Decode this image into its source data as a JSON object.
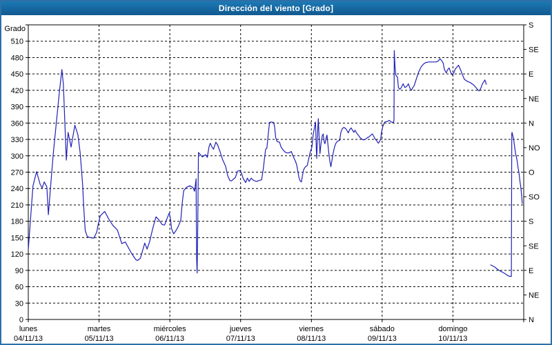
{
  "window": {
    "title": "Dirección del viento [Grado]"
  },
  "colors": {
    "titlebar": "#15659e",
    "frame_border": "#2e6fa8",
    "line": "#1f1fb5",
    "grid": "#000000",
    "plot_background": "#ffffff",
    "text": "#000000"
  },
  "chart_data": {
    "type": "line",
    "title": "Dirección del viento [Grado]",
    "grid": {
      "horizontal_step_deg": 30,
      "vertical_per_day": true,
      "style": "dashed"
    },
    "y_axis_left": {
      "label": "Grado",
      "min": 0,
      "max": 540,
      "tick_step": 30,
      "highest_labeled_tick": 510
    },
    "y_axis_right": {
      "tick_step_deg": 45,
      "labels_bottom_to_top": [
        "N",
        "NE",
        "E",
        "SE",
        "S",
        "SO",
        "O",
        "NO",
        "N",
        "NE",
        "E",
        "SE",
        "S"
      ]
    },
    "x_axis": {
      "hours_total": 168,
      "days": [
        {
          "name": "lunes",
          "date": "04/11/13"
        },
        {
          "name": "martes",
          "date": "05/11/13"
        },
        {
          "name": "miércoles",
          "date": "06/11/13"
        },
        {
          "name": "jueves",
          "date": "07/11/13"
        },
        {
          "name": "viernes",
          "date": "08/11/13"
        },
        {
          "name": "sábado",
          "date": "09/11/13"
        },
        {
          "name": "domingo",
          "date": "10/11/13"
        }
      ]
    },
    "series": [
      {
        "name": "Dirección del viento",
        "unit": "Grado",
        "color": "#1f1fb5",
        "segments": [
          [
            [
              0,
              128
            ],
            [
              0.7,
              180
            ],
            [
              1.6,
              245
            ],
            [
              2.8,
              271
            ],
            [
              4,
              248
            ],
            [
              4.7,
              241
            ],
            [
              5.4,
              252
            ],
            [
              6.3,
              243
            ],
            [
              6.8,
              192
            ],
            [
              7.5,
              240
            ],
            [
              8.5,
              305
            ],
            [
              9.5,
              360
            ],
            [
              10.5,
              415
            ],
            [
              11.4,
              458
            ],
            [
              11.9,
              430
            ],
            [
              12.4,
              360
            ],
            [
              12.9,
              292
            ],
            [
              13.5,
              343
            ],
            [
              14.5,
              316
            ],
            [
              15.8,
              356
            ],
            [
              16.8,
              339
            ],
            [
              17.6,
              305
            ],
            [
              18.4,
              250
            ],
            [
              18.8,
              207
            ],
            [
              19.3,
              163
            ],
            [
              20,
              152
            ],
            [
              21,
              150
            ],
            [
              22.2,
              149
            ],
            [
              23.2,
              160
            ],
            [
              23.6,
              172
            ],
            [
              24.4,
              190
            ],
            [
              25.9,
              198
            ],
            [
              27.2,
              185
            ],
            [
              28.6,
              173
            ],
            [
              30.2,
              164
            ],
            [
              31.7,
              139
            ],
            [
              32.9,
              142
            ],
            [
              34.9,
              122
            ],
            [
              36.4,
              110
            ],
            [
              37,
              108
            ],
            [
              38,
              112
            ],
            [
              39.5,
              140
            ],
            [
              40.3,
              129
            ],
            [
              41.1,
              142
            ],
            [
              42.3,
              169
            ],
            [
              43.3,
              188
            ],
            [
              44.2,
              183
            ],
            [
              45.4,
              174
            ],
            [
              46.2,
              173
            ],
            [
              47.4,
              190
            ],
            [
              47.8,
              195
            ],
            [
              48.2,
              185
            ],
            [
              48.6,
              166
            ],
            [
              49.3,
              157
            ],
            [
              50.1,
              163
            ],
            [
              50.9,
              171
            ],
            [
              51.7,
              182
            ],
            [
              52.2,
              213
            ],
            [
              52.7,
              236
            ],
            [
              53.6,
              242
            ],
            [
              54.8,
              245
            ],
            [
              55.8,
              242
            ],
            [
              56.4,
              235
            ],
            [
              56.9,
              258
            ],
            [
              57,
              170
            ],
            [
              57.1,
              110
            ],
            [
              57.25,
              85
            ],
            [
              57.45,
              160
            ],
            [
              57.7,
              306
            ],
            [
              59,
              298
            ],
            [
              60.1,
              302
            ],
            [
              60.7,
              297
            ],
            [
              61.3,
              317
            ],
            [
              61.7,
              323
            ],
            [
              62.2,
              317
            ],
            [
              62.8,
              312
            ],
            [
              63.6,
              325
            ],
            [
              64.2,
              320
            ],
            [
              65,
              308
            ],
            [
              65.9,
              293
            ],
            [
              66.9,
              281
            ],
            [
              67.6,
              264
            ],
            [
              68.3,
              255
            ],
            [
              68.9,
              254
            ],
            [
              69.5,
              257
            ],
            [
              70.2,
              260
            ],
            [
              71,
              272
            ],
            [
              71.8,
              273
            ],
            [
              72.3,
              268
            ],
            [
              72.9,
              258
            ],
            [
              73.7,
              251
            ],
            [
              74.3,
              259
            ],
            [
              74.9,
              253
            ],
            [
              75.6,
              259
            ],
            [
              76.4,
              255
            ],
            [
              77.4,
              253
            ],
            [
              78.4,
              255
            ],
            [
              79.1,
              256
            ],
            [
              79.7,
              276
            ],
            [
              80.1,
              295
            ],
            [
              80.5,
              312
            ],
            [
              80.9,
              314
            ],
            [
              81.3,
              336
            ],
            [
              81.8,
              361
            ],
            [
              82.4,
              362
            ],
            [
              83.2,
              361
            ],
            [
              83.5,
              354
            ],
            [
              83.9,
              333
            ],
            [
              84.4,
              326
            ],
            [
              85.2,
              325
            ],
            [
              85.7,
              316
            ],
            [
              86.5,
              310
            ],
            [
              87.3,
              306
            ],
            [
              88.1,
              305
            ],
            [
              88.7,
              306
            ],
            [
              89.2,
              308
            ],
            [
              89.9,
              298
            ],
            [
              90.5,
              291
            ],
            [
              91,
              284
            ],
            [
              91.4,
              272
            ],
            [
              91.8,
              260
            ],
            [
              92.2,
              254
            ],
            [
              92.6,
              252
            ],
            [
              93,
              265
            ],
            [
              93.4,
              275
            ],
            [
              94,
              280
            ],
            [
              94.6,
              282
            ],
            [
              95,
              292
            ],
            [
              95.4,
              302
            ],
            [
              95.8,
              310
            ],
            [
              96.2,
              316
            ],
            [
              96.6,
              338
            ],
            [
              97.2,
              356
            ],
            [
              97.4,
              362
            ],
            [
              97.65,
              316
            ],
            [
              97.8,
              295
            ],
            [
              98.1,
              343
            ],
            [
              98.35,
              368
            ],
            [
              98.7,
              326
            ],
            [
              98.9,
              304
            ],
            [
              99.3,
              324
            ],
            [
              99.7,
              337
            ],
            [
              100,
              340
            ],
            [
              100.3,
              327
            ],
            [
              100.6,
              322
            ],
            [
              101,
              333
            ],
            [
              101.3,
              338
            ],
            [
              101.8,
              310
            ],
            [
              102.2,
              292
            ],
            [
              102.6,
              280
            ],
            [
              103.4,
              305
            ],
            [
              103.9,
              317
            ],
            [
              104.3,
              323
            ],
            [
              104.9,
              327
            ],
            [
              105.6,
              328
            ],
            [
              106,
              343
            ],
            [
              106.5,
              350
            ],
            [
              107,
              352
            ],
            [
              107.6,
              350
            ],
            [
              108.1,
              346
            ],
            [
              108.5,
              342
            ],
            [
              109,
              348
            ],
            [
              109.5,
              351
            ],
            [
              109.9,
              347
            ],
            [
              110.4,
              343
            ],
            [
              110.8,
              347
            ],
            [
              111.3,
              342
            ],
            [
              111.9,
              338
            ],
            [
              112.4,
              334
            ],
            [
              113,
              331
            ],
            [
              113.7,
              329
            ],
            [
              114.3,
              330
            ],
            [
              114.9,
              333
            ],
            [
              115.6,
              335
            ],
            [
              116.2,
              338
            ],
            [
              116.7,
              340
            ],
            [
              117.2,
              335
            ],
            [
              117.6,
              331
            ],
            [
              118.2,
              327
            ],
            [
              118.7,
              323
            ],
            [
              119.1,
              326
            ],
            [
              119.5,
              331
            ],
            [
              119.8,
              344
            ],
            [
              120.3,
              355
            ],
            [
              120.9,
              362
            ],
            [
              121.8,
              363
            ],
            [
              122.4,
              365
            ],
            [
              123.1,
              362
            ],
            [
              123.8,
              361
            ],
            [
              124,
              365
            ],
            [
              124.1,
              493
            ],
            [
              124.35,
              465
            ],
            [
              124.6,
              448
            ],
            [
              125.2,
              444
            ],
            [
              125.5,
              425
            ],
            [
              126,
              422
            ],
            [
              126.5,
              425
            ],
            [
              127.1,
              432
            ],
            [
              127.7,
              425
            ],
            [
              128.3,
              427
            ],
            [
              128.9,
              432
            ],
            [
              129.4,
              424
            ],
            [
              129.9,
              420
            ],
            [
              130.4,
              425
            ],
            [
              130.9,
              429
            ],
            [
              131.6,
              441
            ],
            [
              132.4,
              454
            ],
            [
              133.2,
              463
            ],
            [
              134,
              468
            ],
            [
              134.8,
              471
            ],
            [
              135.9,
              472
            ],
            [
              137.1,
              472
            ],
            [
              138.3,
              472
            ],
            [
              139.1,
              474
            ],
            [
              139.6,
              478
            ],
            [
              140.1,
              475
            ],
            [
              140.7,
              470
            ],
            [
              141.1,
              459
            ],
            [
              141.5,
              454
            ],
            [
              141.8,
              452
            ],
            [
              142.1,
              457
            ],
            [
              142.7,
              461
            ],
            [
              143.1,
              455
            ],
            [
              143.5,
              450
            ],
            [
              143.8,
              448
            ],
            [
              144.3,
              452
            ],
            [
              144.8,
              459
            ],
            [
              145.9,
              466
            ],
            [
              146.7,
              456
            ],
            [
              147.1,
              450
            ],
            [
              147.9,
              440
            ],
            [
              148.7,
              437
            ],
            [
              149.9,
              434
            ],
            [
              151,
              430
            ],
            [
              151.8,
              425
            ],
            [
              152.4,
              421
            ],
            [
              152.9,
              419
            ],
            [
              153.4,
              423
            ],
            [
              154,
              432
            ],
            [
              154.5,
              436
            ],
            [
              154.8,
              439
            ],
            [
              155.1,
              435
            ],
            [
              155.3,
              431
            ]
          ],
          [
            [
              156.8,
              100
            ],
            [
              157.5,
              98
            ],
            [
              158.2,
              96
            ],
            [
              158.9,
              93
            ],
            [
              159.6,
              90
            ],
            [
              160.3,
              88
            ],
            [
              161,
              86
            ],
            [
              161.7,
              84
            ],
            [
              162.2,
              82
            ],
            [
              162.7,
              80
            ],
            [
              163.3,
              79
            ],
            [
              163.8,
              79
            ],
            [
              163.95,
              340
            ],
            [
              164.05,
              343
            ],
            [
              164.3,
              337
            ],
            [
              164.6,
              329
            ],
            [
              165,
              313
            ],
            [
              165.3,
              302
            ],
            [
              165.7,
              293
            ],
            [
              166,
              281
            ],
            [
              166.4,
              268
            ],
            [
              166.7,
              255
            ],
            [
              167.1,
              238
            ],
            [
              167.3,
              227
            ],
            [
              167.5,
              213
            ]
          ]
        ]
      }
    ]
  }
}
